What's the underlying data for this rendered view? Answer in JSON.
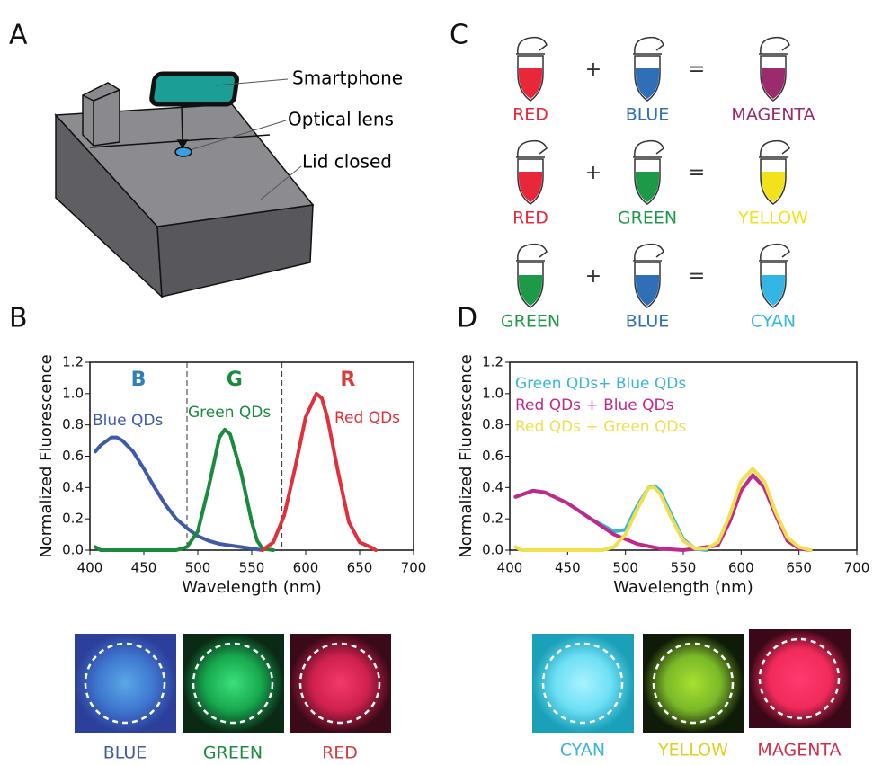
{
  "panels": {
    "A": {
      "label": "A",
      "annotations": [
        "Smartphone",
        "Optical lens",
        "Lid closed"
      ]
    },
    "B": {
      "label": "B"
    },
    "C": {
      "label": "C",
      "plus": "+",
      "equals": "=",
      "rows": [
        [
          {
            "name": "RED",
            "color": "#e8283a"
          },
          {
            "name": "BLUE",
            "color": "#2f6fb8"
          },
          {
            "name": "MAGENTA",
            "color": "#9b2a6e"
          }
        ],
        [
          {
            "name": "RED",
            "color": "#e8283a"
          },
          {
            "name": "GREEN",
            "color": "#1d9a48"
          },
          {
            "name": "YELLOW",
            "color": "#f2e21a"
          }
        ],
        [
          {
            "name": "GREEN",
            "color": "#1d9a48"
          },
          {
            "name": "BLUE",
            "color": "#2f6fb8"
          },
          {
            "name": "CYAN",
            "color": "#33b5e5"
          }
        ]
      ]
    },
    "D": {
      "label": "D"
    }
  },
  "photos_left": [
    {
      "name": "BLUE",
      "color": "#3e5aa8"
    },
    {
      "name": "GREEN",
      "color": "#1a8a3e"
    },
    {
      "name": "RED",
      "color": "#d83c3c"
    }
  ],
  "photos_right": [
    {
      "name": "CYAN",
      "color": "#3ab5d9"
    },
    {
      "name": "YELLOW",
      "color": "#e0cf20"
    },
    {
      "name": "MAGENTA",
      "color": "#d0304a"
    }
  ],
  "chart_data": [
    {
      "type": "line",
      "xlabel": "Wavelength (nm)",
      "ylabel": "Normalized Fluorescence",
      "xlim": [
        400,
        700
      ],
      "ylim": [
        0,
        1.2
      ],
      "xticks": [
        400,
        450,
        500,
        550,
        600,
        650,
        700
      ],
      "yticks": [
        {
          "value": 0,
          "label": "0.0"
        },
        0.2,
        0.4,
        0.6,
        0.8,
        {
          "value": 1,
          "label": "1.0"
        },
        1.2
      ],
      "vlines": [
        490,
        578
      ],
      "region_labels": [
        {
          "text": "B",
          "color": "#2f7fb8"
        },
        {
          "text": "G",
          "color": "#1a8a3e"
        },
        {
          "text": "R",
          "color": "#d83c3c"
        }
      ],
      "series": [
        {
          "name": "Blue QDs",
          "color": "#3e5aa8",
          "x": [
            405,
            410,
            420,
            425,
            430,
            440,
            450,
            460,
            470,
            480,
            490,
            500,
            510,
            520,
            530,
            540,
            550,
            560
          ],
          "values": [
            0.63,
            0.67,
            0.72,
            0.72,
            0.7,
            0.63,
            0.52,
            0.4,
            0.29,
            0.2,
            0.14,
            0.09,
            0.06,
            0.04,
            0.03,
            0.02,
            0.01,
            0
          ]
        },
        {
          "name": "Green QDs",
          "color": "#1a8a3e",
          "x": [
            405,
            410,
            480,
            490,
            500,
            510,
            520,
            525,
            530,
            540,
            550,
            555,
            560,
            570
          ],
          "values": [
            0.02,
            0,
            0,
            0.02,
            0.12,
            0.4,
            0.72,
            0.77,
            0.74,
            0.5,
            0.18,
            0.06,
            0.01,
            0
          ]
        },
        {
          "name": "Red QDs",
          "color": "#e0303c",
          "x": [
            560,
            570,
            580,
            590,
            600,
            610,
            615,
            620,
            630,
            640,
            650,
            660,
            665
          ],
          "values": [
            0,
            0.05,
            0.22,
            0.52,
            0.85,
            1,
            0.97,
            0.85,
            0.5,
            0.18,
            0.05,
            0.02,
            0
          ]
        }
      ]
    },
    {
      "type": "line",
      "xlabel": "Wavelength (nm)",
      "ylabel": "Normalized Fluorescence",
      "xlim": [
        400,
        700
      ],
      "ylim": [
        0,
        1.2
      ],
      "xticks": [
        400,
        450,
        500,
        550,
        600,
        650,
        700
      ],
      "yticks": [
        {
          "value": 0,
          "label": "0.0"
        },
        0.2,
        0.4,
        0.6,
        0.8,
        {
          "value": 1,
          "label": "1.0"
        },
        1.2
      ],
      "legend": "upper left",
      "series": [
        {
          "name": "Green QDs+ Blue QDs",
          "color": "#3ab5d9",
          "x": [
            405,
            420,
            430,
            450,
            470,
            490,
            500,
            510,
            520,
            525,
            530,
            540,
            550,
            560,
            570
          ],
          "values": [
            0.34,
            0.38,
            0.37,
            0.3,
            0.2,
            0.12,
            0.13,
            0.28,
            0.4,
            0.41,
            0.38,
            0.22,
            0.07,
            0.01,
            0
          ]
        },
        {
          "name": "Red QDs + Blue QDs",
          "color": "#c0288a",
          "x": [
            405,
            420,
            430,
            450,
            470,
            490,
            510,
            530,
            550,
            580,
            590,
            600,
            610,
            620,
            630,
            640,
            650,
            660
          ],
          "values": [
            0.34,
            0.38,
            0.37,
            0.3,
            0.2,
            0.1,
            0.04,
            0.01,
            0,
            0.03,
            0.18,
            0.38,
            0.48,
            0.4,
            0.22,
            0.06,
            0.01,
            0
          ]
        },
        {
          "name": "Red QDs + Green QDs",
          "color": "#f0e050",
          "x": [
            405,
            410,
            480,
            490,
            500,
            510,
            520,
            525,
            530,
            540,
            550,
            560,
            570,
            580,
            590,
            600,
            610,
            620,
            630,
            640,
            650,
            660
          ],
          "values": [
            0.02,
            0,
            0,
            0.02,
            0.1,
            0.26,
            0.4,
            0.4,
            0.36,
            0.2,
            0.06,
            0.01,
            0.01,
            0.05,
            0.22,
            0.44,
            0.52,
            0.44,
            0.24,
            0.08,
            0.02,
            0
          ]
        }
      ]
    }
  ]
}
